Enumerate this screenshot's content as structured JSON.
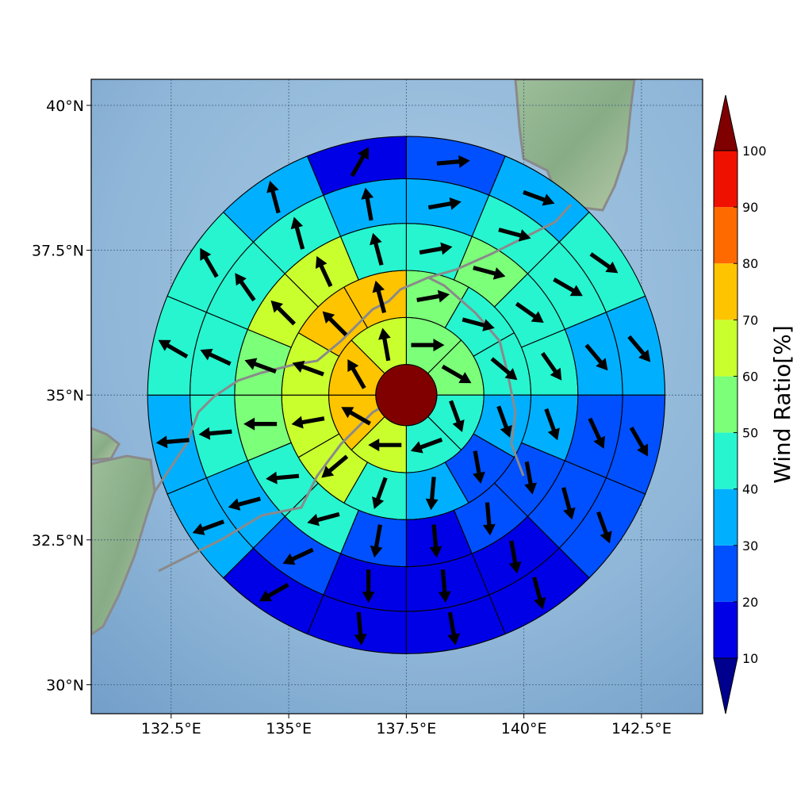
{
  "chart_data": {
    "type": "heatmap",
    "subtype": "polar-sector-map",
    "projection": "map",
    "center": {
      "lon": 137.5,
      "lat": 35.0
    },
    "radius_deg": 5.5,
    "xlim": [
      130.8,
      143.8
    ],
    "ylim": [
      29.5,
      40.45
    ],
    "x_ticks": [
      132.5,
      135,
      137.5,
      140,
      142.5
    ],
    "x_tick_labels": [
      "132.5°E",
      "135°E",
      "137.5°E",
      "140°E",
      "142.5°E"
    ],
    "y_ticks": [
      30,
      32.5,
      35,
      37.5,
      40
    ],
    "y_tick_labels": [
      "30°N",
      "32.5°N",
      "35°N",
      "37.5°N",
      "40°N"
    ],
    "grid": true,
    "center_disc_value": 100,
    "ring_radii_deg": [
      0.65,
      1.65,
      2.65,
      3.65,
      4.6,
      5.5
    ],
    "ring_sector_counts": [
      8,
      12,
      16,
      16,
      16
    ],
    "rings": [
      {
        "values": [
          51,
          52,
          48,
          44,
          65,
          72,
          75,
          62
        ],
        "wind_dir_deg": [
          90,
          120,
          160,
          250,
          270,
          300,
          330,
          350
        ]
      },
      {
        "values": [
          55,
          48,
          42,
          35,
          28,
          35,
          45,
          60,
          66,
          68,
          72,
          70
        ],
        "wind_dir_deg": [
          80,
          105,
          130,
          160,
          170,
          185,
          200,
          230,
          260,
          290,
          315,
          345
        ]
      },
      {
        "values": [
          44,
          55,
          48,
          40,
          35,
          25,
          22,
          15,
          22,
          40,
          45,
          52,
          55,
          65,
          62,
          44
        ],
        "wind_dir_deg": [
          80,
          105,
          125,
          145,
          160,
          170,
          175,
          175,
          190,
          255,
          265,
          270,
          290,
          315,
          335,
          345
        ]
      },
      {
        "values": [
          38,
          42,
          45,
          38,
          28,
          20,
          18,
          15,
          15,
          22,
          35,
          40,
          45,
          48,
          42,
          35
        ],
        "wind_dir_deg": [
          80,
          105,
          120,
          140,
          155,
          165,
          170,
          175,
          180,
          245,
          255,
          265,
          295,
          325,
          345,
          350
        ]
      },
      {
        "values": [
          20,
          35,
          40,
          38,
          25,
          20,
          18,
          15,
          12,
          15,
          30,
          35,
          42,
          42,
          38,
          15
        ],
        "wind_dir_deg": [
          85,
          110,
          125,
          140,
          150,
          160,
          165,
          170,
          175,
          240,
          250,
          265,
          300,
          330,
          345,
          30
        ]
      }
    ],
    "colorbar": {
      "title": "Wind Ratio[%]",
      "tick_labels": [
        "10",
        "20",
        "30",
        "40",
        "50",
        "60",
        "70",
        "80",
        "90",
        "100"
      ],
      "bounds": [
        10,
        20,
        30,
        40,
        50,
        60,
        70,
        80,
        90,
        100
      ],
      "colors": [
        "#0000e6",
        "#0050ff",
        "#00b0ff",
        "#26f5d0",
        "#7cff79",
        "#c9ff2d",
        "#ffc400",
        "#ff6a00",
        "#f01000"
      ],
      "under_color": "#00008f",
      "over_color": "#800000",
      "extend": "both"
    }
  }
}
